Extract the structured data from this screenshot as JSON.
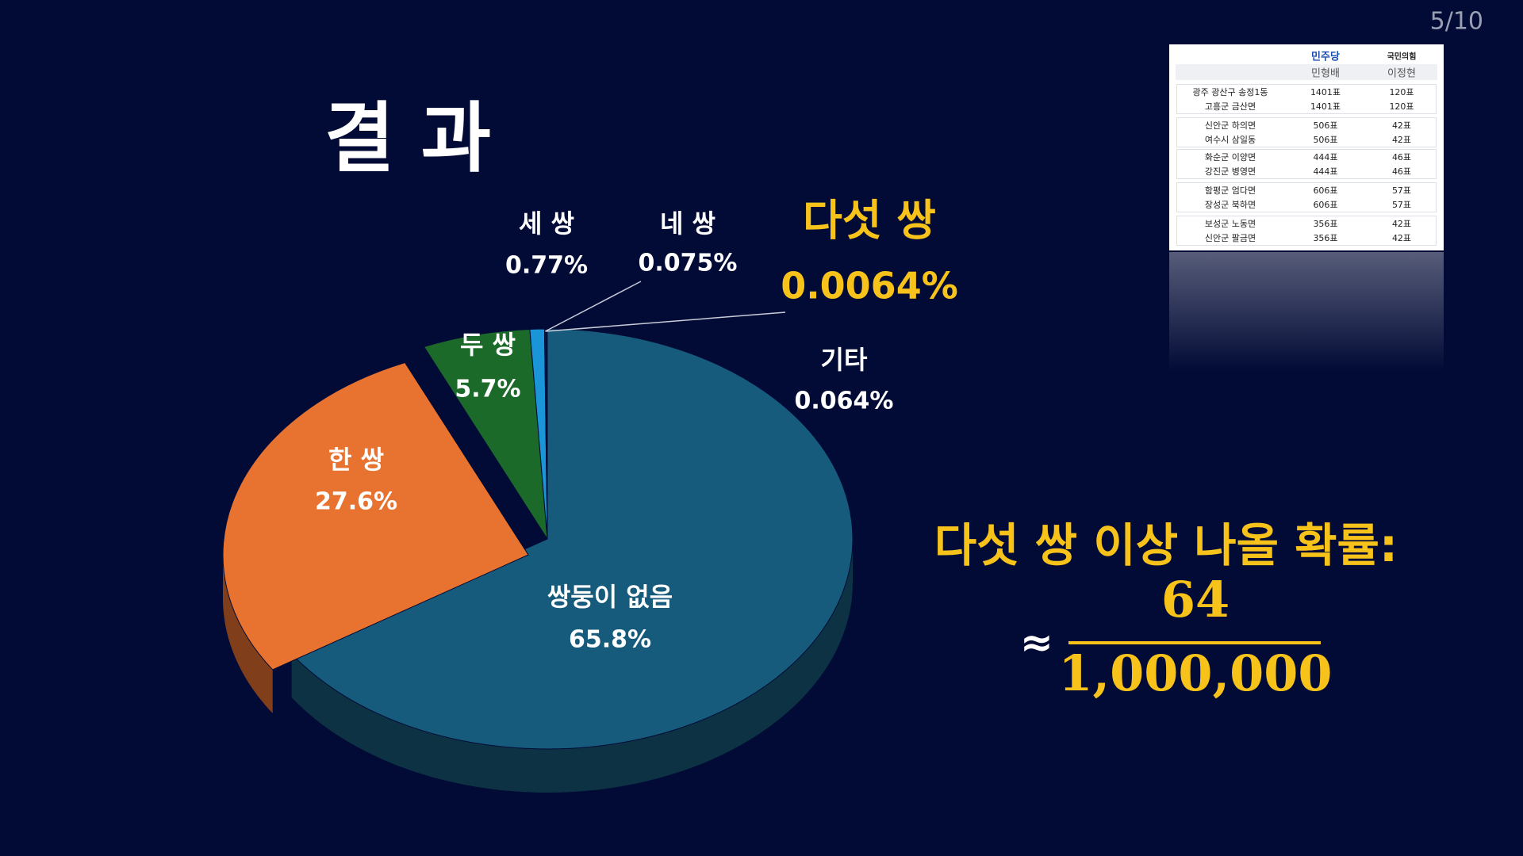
{
  "page": "5/10",
  "chart_data": {
    "type": "pie",
    "title": "결 과",
    "categories": [
      "쌍둥이 없음",
      "한 쌍",
      "두 쌍",
      "세 쌍",
      "네 쌍",
      "다섯 쌍",
      "기타"
    ],
    "values": [
      65.8,
      27.6,
      5.7,
      0.77,
      0.075,
      0.0064,
      0.064
    ],
    "value_labels": [
      "65.8%",
      "27.6%",
      "5.7%",
      "0.77%",
      "0.075%",
      "0.0064%",
      "0.064%"
    ],
    "colors": [
      "#175b7c",
      "#e87330",
      "#1c6a2a",
      "#1a96d8",
      "#0f1f58",
      "#0f1f58",
      "#0f1f58"
    ]
  },
  "probability": {
    "label": "다섯 쌍 이상 나올 확률:",
    "approx": "≈",
    "numerator": "64",
    "denominator": "1,000,000"
  },
  "table": {
    "parties": [
      "민주당",
      "국민의힘"
    ],
    "candidates": [
      "민형배",
      "이정현"
    ],
    "rows": [
      [
        "광주 광산구 송정1동",
        "1401표",
        "120표"
      ],
      [
        "고흥군 금산면",
        "1401표",
        "120표"
      ],
      [
        "신안군 하의면",
        "506표",
        "42표"
      ],
      [
        "여수시 삼일동",
        "506표",
        "42표"
      ],
      [
        "화순군 이양면",
        "444표",
        "46표"
      ],
      [
        "강진군 병영면",
        "444표",
        "46표"
      ],
      [
        "함평군 엄다면",
        "606표",
        "57표"
      ],
      [
        "장성군 북하면",
        "606표",
        "57표"
      ],
      [
        "보성군 노동면",
        "356표",
        "42표"
      ],
      [
        "신안군 팔금면",
        "356표",
        "42표"
      ]
    ]
  }
}
